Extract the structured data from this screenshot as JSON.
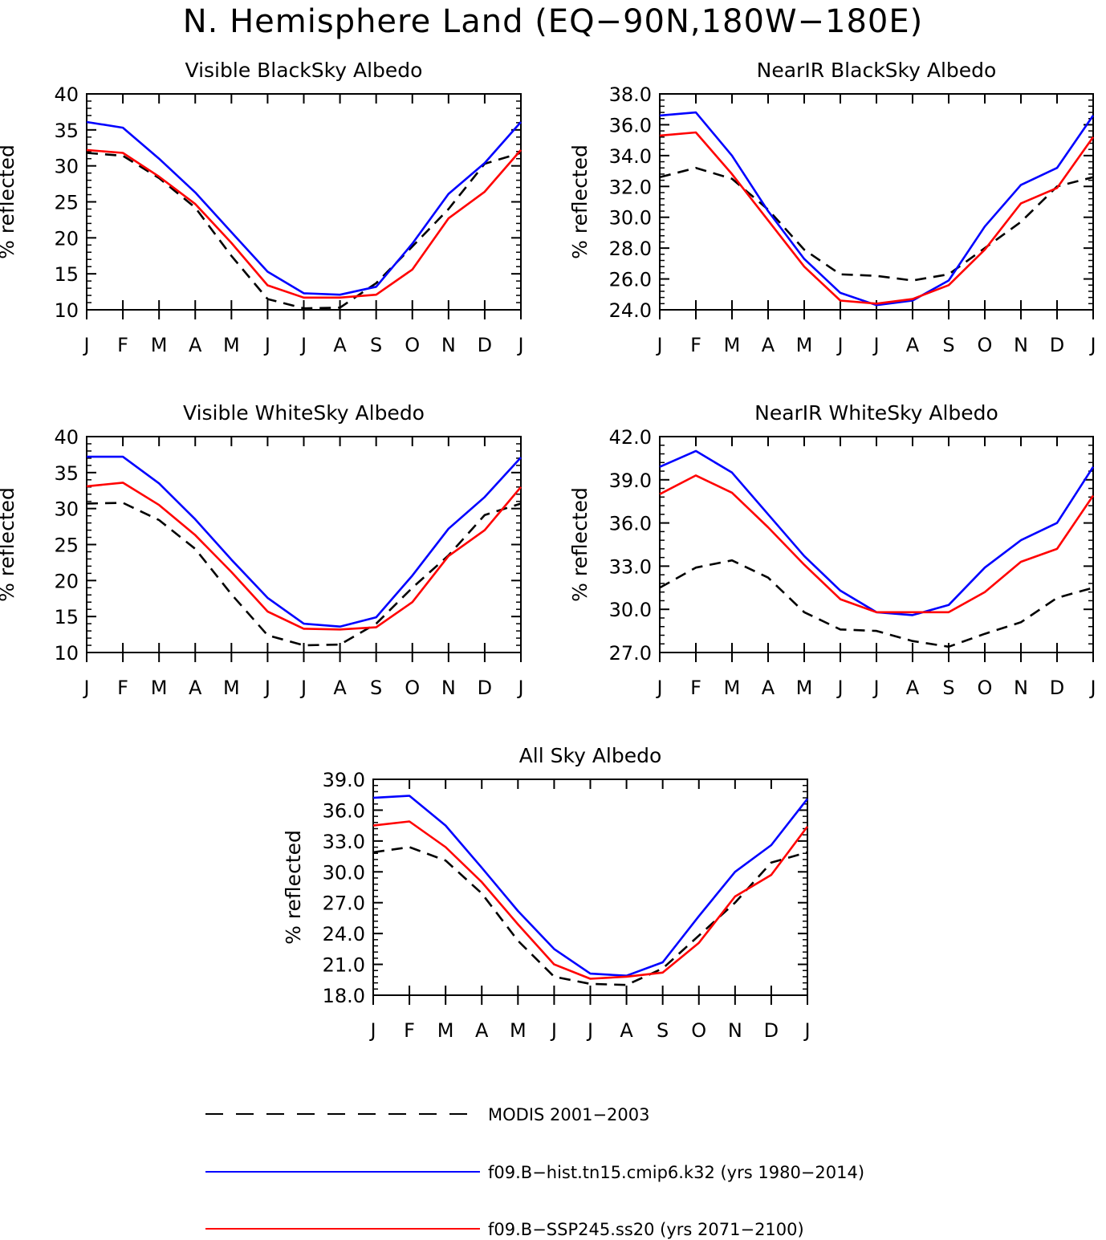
{
  "figure": {
    "title": "N. Hemisphere Land (EQ−90N,180W−180E)"
  },
  "legend": [
    {
      "key": "modis",
      "label": "MODIS 2001−2003",
      "color": "#000000",
      "dash": true
    },
    {
      "key": "hist",
      "label": "f09.B−hist.tn15.cmip6.k32 (yrs 1980−2014)",
      "color": "#0000ff",
      "dash": false
    },
    {
      "key": "ssp",
      "label": "f09.B−SSP245.ss20 (yrs 2071−2100)",
      "color": "#ff0000",
      "dash": false
    }
  ],
  "chart_data": [
    {
      "type": "line",
      "title": "Visible BlackSky Albedo",
      "ylabel": "% reflected",
      "categories": [
        "J",
        "F",
        "M",
        "A",
        "M",
        "J",
        "J",
        "A",
        "S",
        "O",
        "N",
        "D",
        "J"
      ],
      "ylim": [
        10,
        40
      ],
      "yticks": [
        "10",
        "15",
        "20",
        "25",
        "30",
        "35",
        "40"
      ],
      "series": [
        {
          "key": "modis",
          "values": [
            31.8,
            31.4,
            28.3,
            24.2,
            17.5,
            11.5,
            10.2,
            10.3,
            13.7,
            18.8,
            24.0,
            30.3,
            31.8
          ]
        },
        {
          "key": "hist",
          "values": [
            36.1,
            35.3,
            31.0,
            26.3,
            20.8,
            15.3,
            12.3,
            12.1,
            13.2,
            19.2,
            26.1,
            30.4,
            36.1
          ]
        },
        {
          "key": "ssp",
          "values": [
            32.2,
            31.8,
            28.5,
            24.7,
            19.3,
            13.4,
            11.7,
            11.7,
            12.1,
            15.6,
            22.7,
            26.4,
            32.2
          ]
        }
      ]
    },
    {
      "type": "line",
      "title": "NearIR BlackSky Albedo",
      "ylabel": "% reflected",
      "categories": [
        "J",
        "F",
        "M",
        "A",
        "M",
        "J",
        "J",
        "A",
        "S",
        "O",
        "N",
        "D",
        "J"
      ],
      "ylim": [
        24.0,
        38.0
      ],
      "yticks": [
        "24.0",
        "26.0",
        "28.0",
        "30.0",
        "32.0",
        "34.0",
        "36.0",
        "38.0"
      ],
      "series": [
        {
          "key": "modis",
          "values": [
            32.6,
            33.2,
            32.5,
            30.5,
            27.9,
            26.3,
            26.2,
            25.9,
            26.3,
            28.0,
            29.7,
            32.0,
            32.6
          ]
        },
        {
          "key": "hist",
          "values": [
            36.6,
            36.8,
            34.0,
            30.4,
            27.3,
            25.1,
            24.3,
            24.6,
            25.9,
            29.4,
            32.1,
            33.2,
            36.6
          ]
        },
        {
          "key": "ssp",
          "values": [
            35.3,
            35.5,
            32.8,
            29.8,
            26.8,
            24.6,
            24.4,
            24.7,
            25.6,
            27.9,
            30.9,
            31.9,
            35.2
          ]
        }
      ]
    },
    {
      "type": "line",
      "title": "Visible WhiteSky Albedo",
      "ylabel": "% reflected",
      "categories": [
        "J",
        "F",
        "M",
        "A",
        "M",
        "J",
        "J",
        "A",
        "S",
        "O",
        "N",
        "D",
        "J"
      ],
      "ylim": [
        10,
        40
      ],
      "yticks": [
        "10",
        "15",
        "20",
        "25",
        "30",
        "35",
        "40"
      ],
      "series": [
        {
          "key": "modis",
          "values": [
            30.7,
            30.8,
            28.4,
            24.4,
            18.1,
            12.4,
            11.0,
            11.1,
            14.0,
            19.0,
            23.5,
            29.1,
            30.7
          ]
        },
        {
          "key": "hist",
          "values": [
            37.2,
            37.2,
            33.5,
            28.5,
            22.9,
            17.6,
            14.0,
            13.6,
            14.9,
            20.7,
            27.2,
            31.6,
            37.1
          ]
        },
        {
          "key": "ssp",
          "values": [
            33.1,
            33.6,
            30.5,
            26.3,
            21.2,
            15.7,
            13.3,
            13.2,
            13.5,
            17.0,
            23.4,
            27.0,
            33.0
          ]
        }
      ]
    },
    {
      "type": "line",
      "title": "NearIR WhiteSky Albedo",
      "ylabel": "% reflected",
      "categories": [
        "J",
        "F",
        "M",
        "A",
        "M",
        "J",
        "J",
        "A",
        "S",
        "O",
        "N",
        "D",
        "J"
      ],
      "ylim": [
        27.0,
        42.0
      ],
      "yticks": [
        "27.0",
        "30.0",
        "33.0",
        "36.0",
        "39.0",
        "42.0"
      ],
      "series": [
        {
          "key": "modis",
          "values": [
            31.5,
            32.9,
            33.4,
            32.2,
            29.8,
            28.6,
            28.5,
            27.8,
            27.4,
            28.3,
            29.1,
            30.8,
            31.5
          ]
        },
        {
          "key": "hist",
          "values": [
            39.9,
            41.0,
            39.5,
            36.6,
            33.7,
            31.3,
            29.8,
            29.6,
            30.3,
            32.9,
            34.8,
            36.0,
            39.9
          ]
        },
        {
          "key": "ssp",
          "values": [
            38.0,
            39.3,
            38.1,
            35.7,
            33.1,
            30.7,
            29.8,
            29.8,
            29.8,
            31.2,
            33.3,
            34.2,
            37.9
          ]
        }
      ]
    },
    {
      "type": "line",
      "title": "All Sky Albedo",
      "ylabel": "% reflected",
      "categories": [
        "J",
        "F",
        "M",
        "A",
        "M",
        "J",
        "J",
        "A",
        "S",
        "O",
        "N",
        "D",
        "J"
      ],
      "ylim": [
        18.0,
        39.0
      ],
      "yticks": [
        "18.0",
        "21.0",
        "24.0",
        "27.0",
        "30.0",
        "33.0",
        "36.0",
        "39.0"
      ],
      "series": [
        {
          "key": "modis",
          "values": [
            31.9,
            32.4,
            31.1,
            27.9,
            23.3,
            19.8,
            19.1,
            19.0,
            20.6,
            23.8,
            27.0,
            30.9,
            31.9
          ]
        },
        {
          "key": "hist",
          "values": [
            37.2,
            37.4,
            34.5,
            30.4,
            26.2,
            22.5,
            20.1,
            19.9,
            21.2,
            25.7,
            30.0,
            32.6,
            37.1
          ]
        },
        {
          "key": "ssp",
          "values": [
            34.5,
            34.9,
            32.4,
            29.0,
            24.9,
            21.0,
            19.6,
            19.8,
            20.2,
            23.1,
            27.6,
            29.7,
            34.4
          ]
        }
      ]
    }
  ]
}
